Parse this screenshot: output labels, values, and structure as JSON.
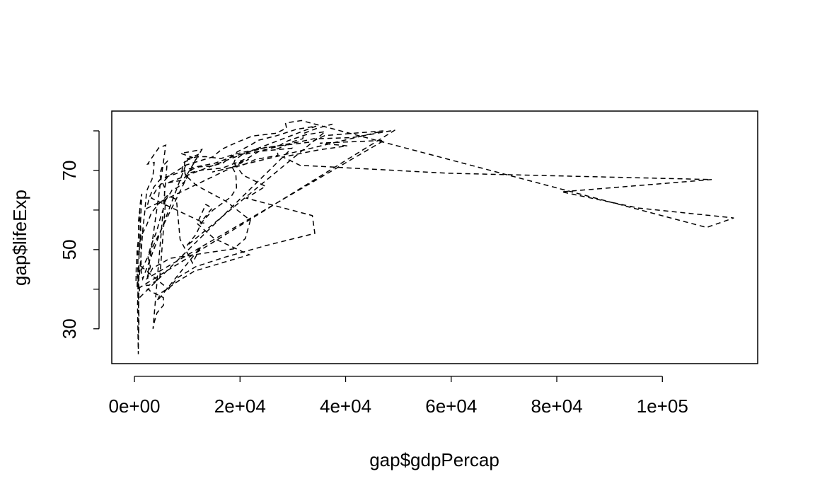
{
  "chart_data": {
    "type": "line",
    "x_label": "gap$gdpPercap",
    "y_label": "gap$lifeExp",
    "x": [
      779,
      821,
      853,
      836,
      740,
      786,
      978,
      852,
      649,
      635,
      727,
      975,
      1601,
      1942,
      2313,
      2760,
      3313,
      3533,
      3631,
      3739,
      2497,
      3193,
      4604,
      5937,
      2449,
      3014,
      2551,
      3247,
      4183,
      4910,
      5745,
      5681,
      5023,
      4797,
      5288,
      6223,
      3521,
      3828,
      4269,
      5523,
      5473,
      3009,
      2757,
      2430,
      2628,
      2277,
      2773,
      4797,
      5911,
      6857,
      7133,
      8053,
      9443,
      10079,
      8998,
      9140,
      9308,
      10967,
      8798,
      12779,
      10040,
      10950,
      12217,
      14526,
      16789,
      18334,
      19477,
      21889,
      23425,
      26998,
      30688,
      34435,
      6137,
      8843,
      10751,
      12835,
      16662,
      19749,
      21597,
      23688,
      27042,
      29096,
      32418,
      36126,
      9867,
      11636,
      12753,
      14805,
      18269,
      19340,
      19211,
      18524,
      19036,
      20292,
      23404,
      29796,
      684,
      662,
      686,
      721,
      630,
      660,
      677,
      752,
      838,
      973,
      1136,
      1391,
      851,
      918,
      984,
      1215,
      2264,
      3215,
      4551,
      6205,
      7954,
      8647,
      11004,
      12570,
      4293,
      4976,
      6631,
      8358,
      11401,
      21746,
      15113,
      11864,
      13522,
      14723,
      12522,
      13206,
      3217,
      4318,
      6577,
      9847,
      14779,
      16610,
      19384,
      22376,
      26825,
      28817,
      28605,
      31656,
      108382,
      113523,
      95458,
      80895,
      109348,
      59265,
      31354,
      28118,
      34933,
      40301,
      35110,
      47307,
      2388,
      3448,
      6757,
      18773,
      21011,
      21951,
      17364,
      11770,
      9640,
      9467,
      9535,
      12057,
      299,
      336,
      412,
      498,
      496,
      745,
      797,
      774,
      977,
      1186,
      1275,
      1569,
      10095,
      11654,
      13450,
      16362,
      18965,
      23311,
      26299,
      31541,
      33966,
      41283,
      44684,
      49357,
      493,
      540,
      597,
      511,
      591,
      670,
      881,
      848,
      737,
      590,
      785,
      863,
      6460,
      8157,
      11626,
      16904,
      24837,
      34168,
      33693,
      21198,
      24841,
      20586,
      19014,
      21655,
      2315,
      2843,
      3675,
      4977,
      8597,
      11210,
      15169,
      18862,
      24769,
      33519,
      36023,
      47143,
      14734,
      17909,
      20431,
      22966,
      27195,
      26982,
      28398,
      30282,
      31872,
      32136,
      34481,
      37506
    ],
    "values": [
      28.8,
      30.3,
      32.0,
      34.0,
      36.1,
      38.4,
      39.9,
      40.8,
      41.7,
      41.8,
      42.1,
      43.8,
      55.2,
      59.3,
      64.8,
      66.2,
      67.7,
      68.9,
      70.4,
      72.0,
      71.6,
      73.0,
      75.7,
      76.4,
      43.1,
      45.7,
      48.3,
      51.4,
      54.5,
      58.0,
      61.4,
      65.8,
      67.7,
      69.2,
      71.0,
      72.3,
      30.0,
      32.0,
      34.0,
      36.0,
      37.9,
      39.5,
      39.9,
      39.9,
      40.6,
      41.0,
      41.0,
      42.7,
      62.5,
      64.4,
      65.1,
      65.6,
      67.1,
      68.5,
      69.9,
      70.8,
      71.9,
      73.3,
      74.3,
      75.3,
      69.1,
      70.3,
      70.9,
      71.1,
      71.9,
      73.5,
      74.7,
      76.3,
      77.6,
      78.8,
      80.4,
      81.2,
      66.8,
      67.5,
      69.5,
      70.1,
      70.6,
      72.2,
      73.2,
      74.9,
      76.0,
      77.5,
      79.0,
      79.8,
      50.9,
      53.8,
      56.9,
      59.9,
      63.3,
      65.6,
      69.1,
      70.8,
      72.6,
      73.9,
      74.8,
      75.6,
      37.5,
      39.3,
      41.2,
      43.5,
      45.3,
      46.9,
      50.0,
      52.8,
      56.0,
      59.4,
      62.0,
      64.1,
      47.6,
      49.6,
      51.5,
      53.3,
      56.0,
      59.3,
      61.5,
      63.6,
      62.7,
      52.6,
      46.6,
      50.7,
      37.0,
      39.0,
      40.5,
      42.1,
      44.6,
      48.7,
      52.8,
      56.6,
      61.4,
      60.5,
      56.8,
      56.7,
      63.0,
      65.5,
      68.7,
      71.4,
      73.4,
      75.4,
      77.1,
      78.7,
      79.4,
      80.7,
      82.0,
      82.6,
      55.6,
      58.0,
      60.5,
      64.6,
      67.7,
      69.3,
      71.3,
      73.4,
      75.2,
      76.2,
      76.9,
      77.6,
      42.7,
      45.3,
      47.8,
      50.2,
      52.8,
      57.4,
      62.2,
      66.2,
      68.8,
      70.5,
      72.7,
      74.0,
      42.1,
      45.0,
      47.7,
      48.5,
      49.8,
      52.5,
      55.1,
      57.2,
      59.7,
      55.6,
      44.6,
      42.6,
      72.7,
      73.4,
      73.5,
      73.0,
      74.1,
      75.4,
      76.0,
      77.3,
      78.0,
      78.3,
      79.1,
      80.2,
      40.0,
      41.5,
      43.0,
      44.1,
      44.6,
      45.0,
      46.2,
      44.0,
      23.6,
      36.1,
      43.4,
      46.2,
      40.0,
      42.9,
      45.7,
      48.0,
      51.0,
      54.1,
      58.6,
      63.0,
      66.0,
      68.8,
      71.6,
      72.8,
      60.4,
      63.2,
      65.8,
      67.9,
      69.5,
      70.8,
      71.8,
      73.6,
      75.8,
      77.2,
      78.8,
      80.0,
      69.6,
      70.6,
      71.3,
      72.8,
      73.8,
      75.4,
      76.2,
      77.4,
      78.0,
      79.4,
      80.6,
      81.7
    ],
    "color": "#000000",
    "line_style": "dashed",
    "xlim": [
      -4290,
      118054
    ],
    "ylim": [
      21.2,
      85
    ],
    "xticks": [
      {
        "value": 0,
        "label": "0e+00"
      },
      {
        "value": 20000,
        "label": "2e+04"
      },
      {
        "value": 40000,
        "label": "4e+04"
      },
      {
        "value": 60000,
        "label": "6e+04"
      },
      {
        "value": 80000,
        "label": "8e+04"
      },
      {
        "value": 100000,
        "label": "1e+05"
      }
    ],
    "yticks": [
      30,
      {
        "value": 40,
        "label": null
      },
      50,
      {
        "value": 60,
        "label": null
      },
      70,
      {
        "value": 80,
        "label": null
      }
    ]
  }
}
